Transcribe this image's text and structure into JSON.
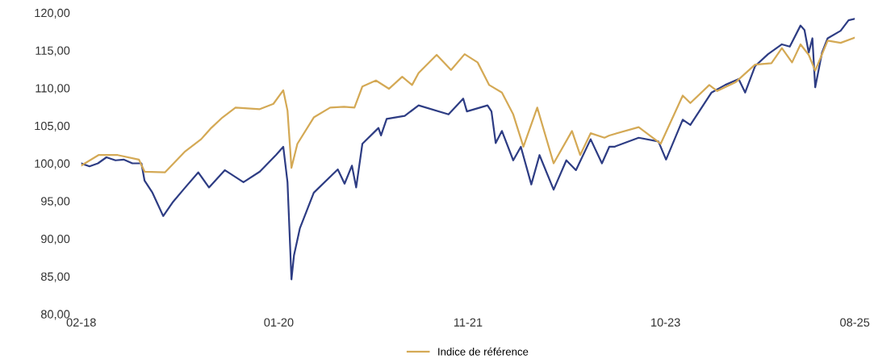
{
  "chart_data": {
    "type": "line",
    "xlim": [
      "2018-02-01",
      "2025-08-01"
    ],
    "xticks": [
      {
        "value": "2018-02-01",
        "label": "02-18"
      },
      {
        "value": "2020-01-01",
        "label": "01-20"
      },
      {
        "value": "2021-11-01",
        "label": "11-21"
      },
      {
        "value": "2023-10-01",
        "label": "10-23"
      },
      {
        "value": "2025-08-01",
        "label": "08-25"
      }
    ],
    "ylim": [
      80,
      120
    ],
    "yticks": [
      {
        "value": 80,
        "label": "80,00"
      },
      {
        "value": 85,
        "label": "85,00"
      },
      {
        "value": 90,
        "label": "90,00"
      },
      {
        "value": 95,
        "label": "95,00"
      },
      {
        "value": 100,
        "label": "100,00"
      },
      {
        "value": 105,
        "label": "105,00"
      },
      {
        "value": 110,
        "label": "110,00"
      },
      {
        "value": 115,
        "label": "115,00"
      },
      {
        "value": 120,
        "label": "120,00"
      }
    ],
    "grid": false,
    "legend": "bottom",
    "marker": "none",
    "line_style": "solid",
    "series": [
      {
        "color": "#2e3d84",
        "x": [
          "2018-02-01",
          "2018-03-02",
          "2018-04-01",
          "2018-05-01",
          "2018-06-02",
          "2018-07-01",
          "2018-08-01",
          "2018-09-02",
          "2018-09-13",
          "2018-10-11",
          "2018-11-18",
          "2018-12-21",
          "2019-02-04",
          "2019-03-22",
          "2019-04-29",
          "2019-06-24",
          "2019-08-29",
          "2019-10-26",
          "2019-12-22",
          "2020-01-17",
          "2020-02-01",
          "2020-02-15",
          "2020-02-24",
          "2020-03-16",
          "2020-05-04",
          "2020-07-28",
          "2020-08-21",
          "2020-09-16",
          "2020-10-01",
          "2020-10-23",
          "2020-12-19",
          "2020-12-28",
          "2021-01-17",
          "2021-03-22",
          "2021-05-10",
          "2021-08-24",
          "2021-10-15",
          "2021-10-28",
          "2022-01-09",
          "2022-01-23",
          "2022-02-07",
          "2022-03-01",
          "2022-04-10",
          "2022-05-07",
          "2022-06-13",
          "2022-07-12",
          "2022-08-31",
          "2022-10-15",
          "2022-11-18",
          "2023-01-09",
          "2023-02-18",
          "2023-03-16",
          "2023-04-03",
          "2023-06-28",
          "2023-09-06",
          "2023-10-03",
          "2023-12-01",
          "2023-12-28",
          "2024-03-12",
          "2024-04-29",
          "2024-06-16",
          "2024-07-09",
          "2024-08-13",
          "2024-09-28",
          "2024-11-16",
          "2024-12-14",
          "2025-01-21",
          "2025-02-04",
          "2025-02-19",
          "2025-03-04",
          "2025-03-14",
          "2025-04-07",
          "2025-04-27",
          "2025-06-12",
          "2025-07-10",
          "2025-08-01"
        ],
        "values": [
          100.0,
          99.6,
          100.0,
          100.8,
          100.4,
          100.5,
          100.0,
          100.0,
          97.7,
          96.1,
          93.0,
          94.8,
          96.8,
          98.8,
          96.8,
          99.1,
          97.5,
          98.9,
          101.1,
          102.2,
          97.5,
          84.6,
          87.8,
          91.4,
          96.1,
          99.2,
          97.3,
          99.7,
          96.8,
          102.6,
          104.7,
          103.7,
          105.9,
          106.3,
          107.7,
          106.5,
          108.6,
          106.9,
          107.7,
          106.9,
          102.7,
          104.3,
          100.4,
          102.2,
          97.2,
          101.1,
          96.5,
          100.4,
          99.1,
          103.2,
          100.0,
          102.2,
          102.2,
          103.4,
          102.9,
          100.5,
          105.8,
          105.1,
          109.4,
          110.4,
          111.2,
          109.4,
          112.9,
          114.5,
          115.8,
          115.5,
          118.3,
          117.7,
          114.7,
          116.6,
          110.1,
          114.7,
          116.6,
          117.6,
          119.0,
          119.2
        ]
      },
      {
        "name": "Indice de référence",
        "color": "#d4a955",
        "x": [
          "2018-02-01",
          "2018-04-03",
          "2018-06-10",
          "2018-08-24",
          "2018-09-13",
          "2018-11-24",
          "2019-02-04",
          "2019-04-01",
          "2019-05-07",
          "2019-06-16",
          "2019-08-01",
          "2019-10-26",
          "2019-12-13",
          "2020-01-17",
          "2020-02-01",
          "2020-02-15",
          "2020-03-07",
          "2020-05-04",
          "2020-07-01",
          "2020-08-19",
          "2020-09-25",
          "2020-10-23",
          "2020-12-10",
          "2021-01-25",
          "2021-03-13",
          "2021-04-17",
          "2021-05-10",
          "2021-07-13",
          "2021-09-02",
          "2021-10-20",
          "2021-12-05",
          "2022-01-15",
          "2022-03-01",
          "2022-04-10",
          "2022-05-16",
          "2022-07-04",
          "2022-08-31",
          "2022-11-04",
          "2022-12-03",
          "2023-01-09",
          "2023-02-27",
          "2023-03-16",
          "2023-06-28",
          "2023-09-14",
          "2023-12-01",
          "2023-12-28",
          "2024-03-04",
          "2024-04-01",
          "2024-06-06",
          "2024-08-13",
          "2024-10-10",
          "2024-11-16",
          "2024-12-22",
          "2025-01-21",
          "2025-02-19",
          "2025-03-14",
          "2025-04-27",
          "2025-06-12",
          "2025-08-01"
        ],
        "values": [
          99.7,
          101.1,
          101.1,
          100.5,
          98.9,
          98.8,
          101.6,
          103.2,
          104.7,
          106.1,
          107.4,
          107.2,
          107.9,
          109.7,
          107.0,
          99.4,
          102.6,
          106.1,
          107.4,
          107.5,
          107.4,
          110.2,
          111.0,
          109.9,
          111.5,
          110.4,
          112.0,
          114.4,
          112.4,
          114.5,
          113.4,
          110.4,
          109.4,
          106.5,
          102.2,
          107.4,
          100.0,
          104.3,
          101.1,
          104.0,
          103.4,
          103.7,
          104.8,
          102.6,
          109.0,
          108.0,
          110.4,
          109.6,
          110.8,
          113.1,
          113.3,
          115.3,
          113.4,
          115.8,
          114.4,
          112.3,
          116.3,
          116.0,
          116.7
        ]
      }
    ]
  }
}
